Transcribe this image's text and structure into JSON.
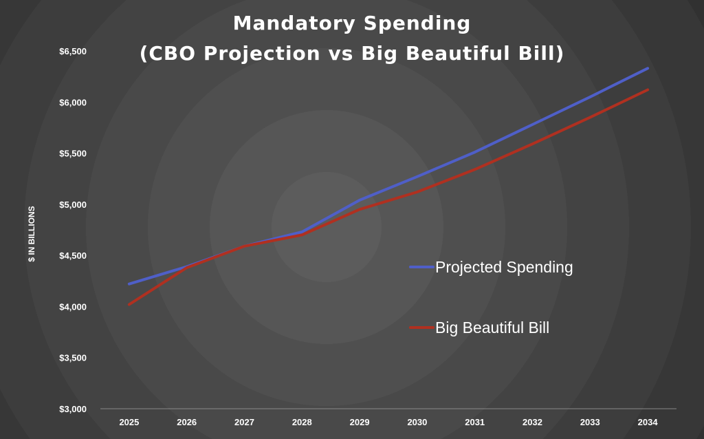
{
  "chart_data": {
    "type": "line",
    "title_lines": [
      "Mandatory Spending",
      "(CBO Projection vs Big Beautiful Bill)"
    ],
    "xlabel": "",
    "ylabel": "$ IN BILLIONS",
    "categories": [
      "2025",
      "2026",
      "2027",
      "2028",
      "2029",
      "2030",
      "2031",
      "2032",
      "2033",
      "2034"
    ],
    "y_ticks": [
      "$3,000",
      "$3,500",
      "$4,000",
      "$4,500",
      "$5,000",
      "$5,500",
      "$6,000",
      "$6,500"
    ],
    "ylim": [
      3000,
      6500
    ],
    "grid": false,
    "legend_position": "right",
    "series": [
      {
        "name": "Projected Spending",
        "color": "#4f5fc8",
        "values": [
          4220,
          4390,
          4590,
          4730,
          5040,
          5270,
          5510,
          5780,
          6050,
          6330
        ]
      },
      {
        "name": "Big Beautiful Bill",
        "color": "#b03020",
        "values": [
          4020,
          4380,
          4590,
          4700,
          4950,
          5120,
          5340,
          5590,
          5850,
          6120
        ]
      }
    ]
  }
}
